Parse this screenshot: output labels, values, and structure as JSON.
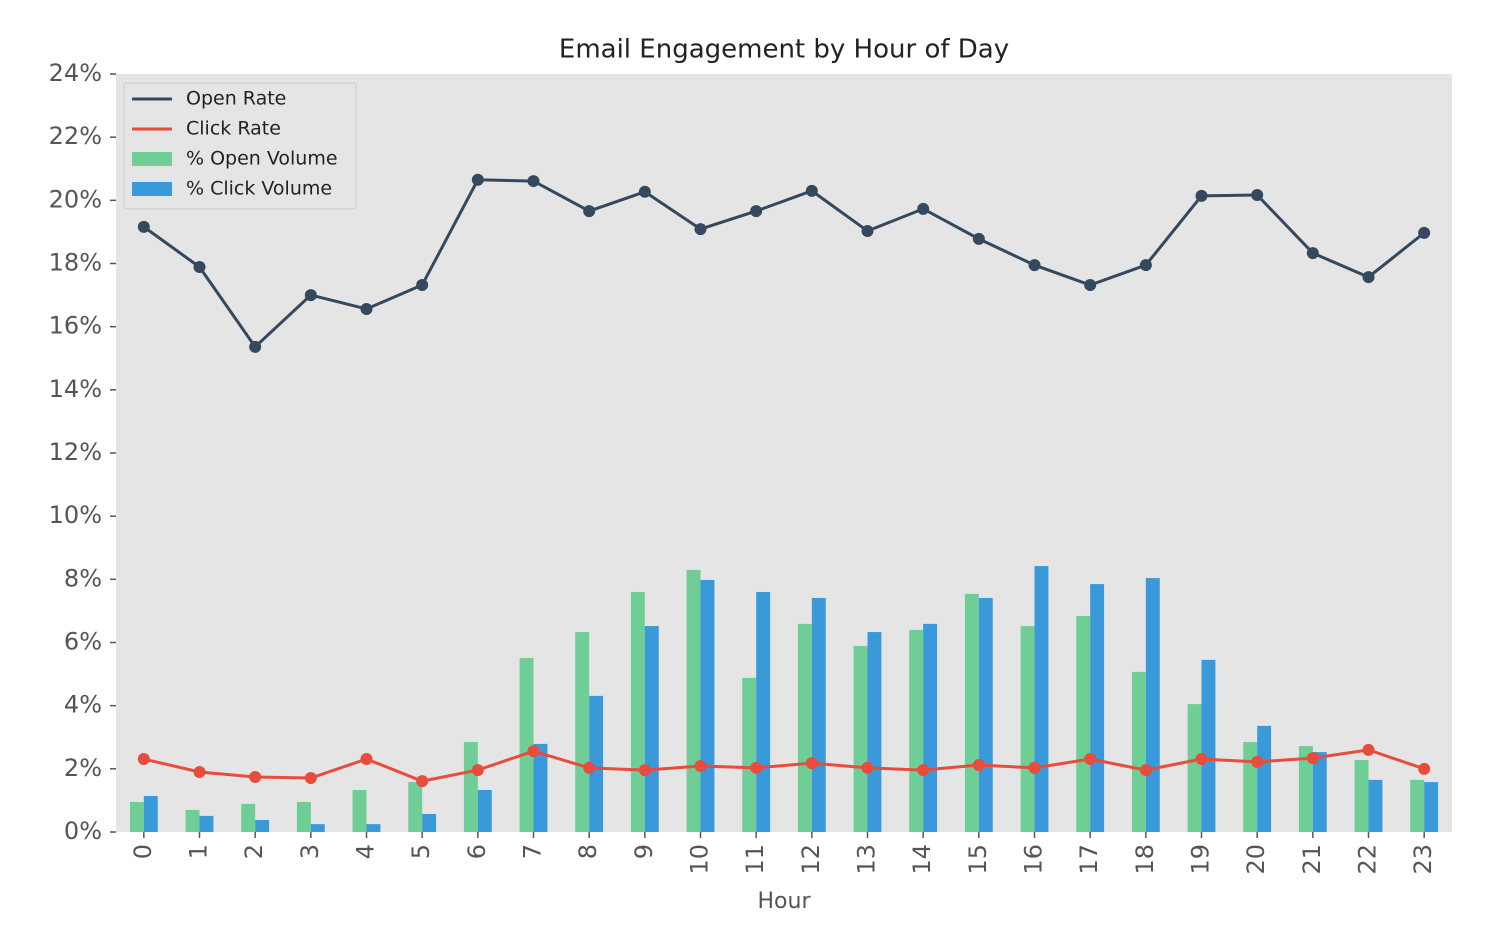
{
  "chart_data": {
    "type": "bar",
    "title": "Email Engagement by Hour of Day",
    "x_label": "Hour",
    "categories": [
      "0",
      "1",
      "2",
      "3",
      "4",
      "5",
      "6",
      "7",
      "8",
      "9",
      "10",
      "11",
      "12",
      "13",
      "14",
      "15",
      "16",
      "17",
      "18",
      "19",
      "20",
      "21",
      "22",
      "23"
    ],
    "series": [
      {
        "name": "% Open Volume",
        "type": "bar",
        "color": "#6fcd96",
        "values": [
          0.95,
          0.7,
          0.89,
          0.95,
          1.33,
          1.58,
          2.85,
          5.51,
          6.33,
          7.6,
          8.3,
          4.88,
          6.59,
          5.89,
          6.4,
          7.54,
          6.52,
          6.84,
          5.07,
          4.05,
          2.85,
          2.72,
          2.28,
          1.65
        ]
      },
      {
        "name": "% Click Volume",
        "type": "bar",
        "color": "#3a9ad9",
        "values": [
          1.14,
          0.51,
          0.38,
          0.25,
          0.25,
          0.57,
          1.33,
          2.79,
          4.31,
          6.52,
          7.98,
          7.6,
          7.41,
          6.33,
          6.59,
          7.41,
          8.42,
          7.85,
          8.04,
          5.45,
          3.36,
          2.53,
          1.65,
          1.58
        ]
      },
      {
        "name": "Open Rate",
        "type": "line",
        "color": "#34495e",
        "values": [
          19.16,
          17.89,
          15.36,
          17.0,
          16.56,
          17.32,
          20.65,
          20.61,
          19.66,
          20.27,
          19.09,
          19.66,
          20.3,
          19.03,
          19.73,
          18.78,
          17.95,
          17.32,
          17.95,
          20.14,
          20.17,
          18.33,
          17.57,
          18.97
        ]
      },
      {
        "name": "Click Rate",
        "type": "line",
        "color": "#e74c3c",
        "values": [
          2.31,
          1.9,
          1.74,
          1.71,
          2.31,
          1.61,
          1.96,
          2.56,
          2.03,
          1.96,
          2.09,
          2.03,
          2.18,
          2.03,
          1.96,
          2.12,
          2.03,
          2.31,
          1.96,
          2.31,
          2.22,
          2.34,
          2.6,
          2.0
        ]
      }
    ],
    "legend_order": [
      2,
      3,
      0,
      1
    ],
    "legend_position": "upper left",
    "ylim": [
      0,
      24
    ],
    "yticks": [
      {
        "value": 0,
        "label": "0%"
      },
      {
        "value": 2,
        "label": "2%"
      },
      {
        "value": 4,
        "label": "4%"
      },
      {
        "value": 6,
        "label": "6%"
      },
      {
        "value": 8,
        "label": "8%"
      },
      {
        "value": 10,
        "label": "10%"
      },
      {
        "value": 12,
        "label": "12%"
      },
      {
        "value": 14,
        "label": "14%"
      },
      {
        "value": 16,
        "label": "16%"
      },
      {
        "value": 18,
        "label": "18%"
      },
      {
        "value": 20,
        "label": "20%"
      },
      {
        "value": 22,
        "label": "22%"
      },
      {
        "value": 24,
        "label": "24%"
      }
    ],
    "grid": false,
    "background": "#e5e5e5"
  }
}
